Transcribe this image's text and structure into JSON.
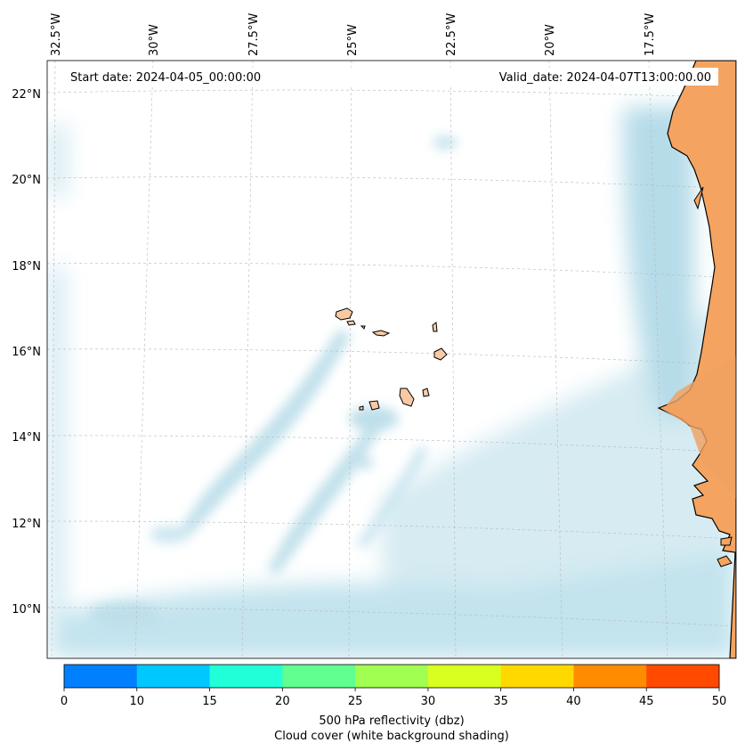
{
  "map": {
    "start_date": "Start date: 2024-04-05_00:00:00",
    "valid_date": "Valid_date: 2024-04-07T13:00:00.00",
    "lon_labels": [
      "32.5°W",
      "30°W",
      "27.5°W",
      "25°W",
      "22.5°W",
      "20°W",
      "17.5°W"
    ],
    "lat_labels": [
      "22°N",
      "20°N",
      "18°N",
      "16°N",
      "14°N",
      "12°N",
      "10°N"
    ],
    "colors": {
      "land_africa": "#f4a460",
      "land_islands": "#f8c9a3",
      "cloud": "#add8e6",
      "coast": "#000000",
      "grid": "#b0b0b0"
    }
  },
  "colorbar": {
    "ticks": [
      "0",
      "10",
      "15",
      "20",
      "25",
      "30",
      "35",
      "40",
      "45",
      "50"
    ],
    "colors": [
      "#0080ff",
      "#00c8ff",
      "#20ffd8",
      "#60ff90",
      "#a0ff50",
      "#d8ff20",
      "#ffd800",
      "#ff8c00",
      "#ff4a00"
    ],
    "label_line1": "500 hPa reflectivity (dbz)",
    "label_line2": "Cloud cover (white background shading)"
  }
}
